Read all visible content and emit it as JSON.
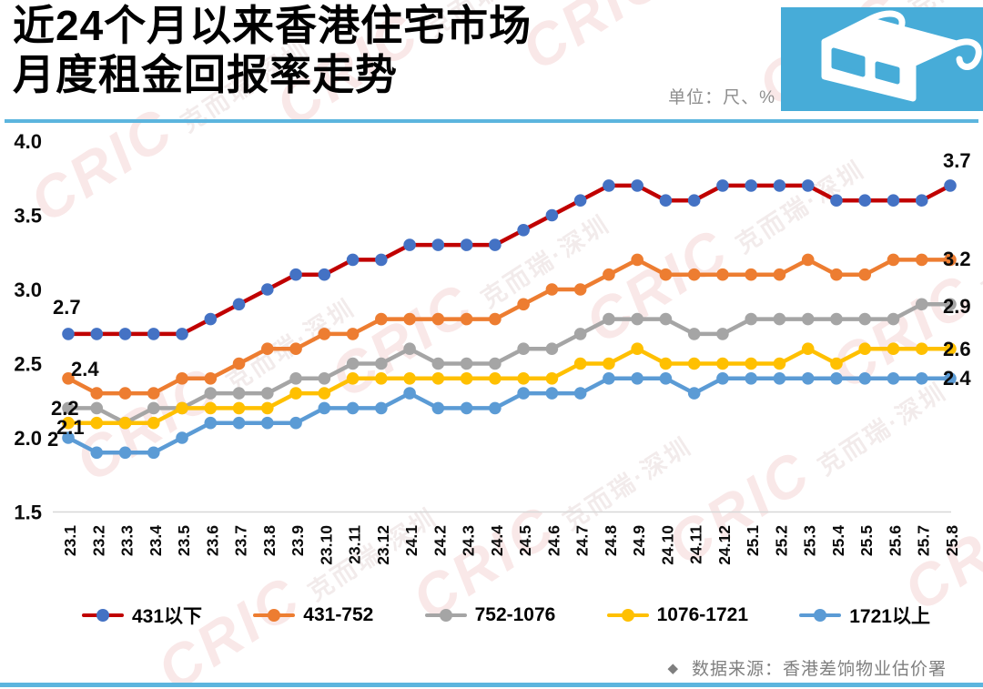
{
  "header": {
    "title_line1": "近24个月以来香港住宅市场",
    "title_line2": "月度租金回报率走势",
    "unit_label": "单位：尺、%"
  },
  "watermark": {
    "brand": "CRIC",
    "text": "克而瑞·深圳"
  },
  "footer": {
    "bullet": "◆",
    "source": "数据来源：香港差饷物业估价署"
  },
  "accent_colors": {
    "rule_blue": "#5CB5DE",
    "icon_bg": "#47ACD8",
    "axis_gray": "#D7D7D7"
  },
  "chart_data": {
    "type": "line",
    "title": "近24个月以来香港住宅市场月度租金回报率走势",
    "unit": "单位：尺、%",
    "ylim": [
      1.5,
      4.0
    ],
    "yticks": [
      "4.0",
      "3.5",
      "3.0",
      "2.5",
      "2.0",
      "1.5"
    ],
    "grid": false,
    "legend_position": "bottom",
    "categories": [
      "23.1",
      "23.2",
      "23.3",
      "23.4",
      "23.5",
      "23.6",
      "23.7",
      "23.8",
      "23.9",
      "23.10",
      "23.11",
      "23.12",
      "24.1",
      "24.2",
      "24.3",
      "24.4",
      "24.5",
      "24.6",
      "24.7",
      "24.8",
      "24.9",
      "24.10",
      "24.11",
      "24.12",
      "25.1",
      "25.2",
      "25.3",
      "25.4",
      "25.5",
      "25.6",
      "25.7",
      "25.8"
    ],
    "series": [
      {
        "name": "431以下",
        "color": "#C00000",
        "marker_color": "#4472C4",
        "start_label": "2.7",
        "end_label": "3.7",
        "values": [
          2.7,
          2.7,
          2.7,
          2.7,
          2.7,
          2.8,
          2.9,
          3.0,
          3.1,
          3.1,
          3.2,
          3.2,
          3.3,
          3.3,
          3.3,
          3.3,
          3.4,
          3.5,
          3.6,
          3.7,
          3.7,
          3.6,
          3.6,
          3.7,
          3.7,
          3.7,
          3.7,
          3.6,
          3.6,
          3.6,
          3.6,
          3.7
        ]
      },
      {
        "name": "431-752",
        "color": "#ED7D31",
        "marker_color": "#ED7D31",
        "start_label": "2.4",
        "end_label": "3.2",
        "values": [
          2.4,
          2.3,
          2.3,
          2.3,
          2.4,
          2.4,
          2.5,
          2.6,
          2.6,
          2.7,
          2.7,
          2.8,
          2.8,
          2.8,
          2.8,
          2.8,
          2.9,
          3.0,
          3.0,
          3.1,
          3.2,
          3.1,
          3.1,
          3.1,
          3.1,
          3.1,
          3.2,
          3.1,
          3.1,
          3.2,
          3.2,
          3.2
        ]
      },
      {
        "name": "752-1076",
        "color": "#A5A5A5",
        "marker_color": "#A5A5A5",
        "start_label": "2.2",
        "end_label": "2.9",
        "values": [
          2.2,
          2.2,
          2.1,
          2.2,
          2.2,
          2.3,
          2.3,
          2.3,
          2.4,
          2.4,
          2.5,
          2.5,
          2.6,
          2.5,
          2.5,
          2.5,
          2.6,
          2.6,
          2.7,
          2.8,
          2.8,
          2.8,
          2.7,
          2.7,
          2.8,
          2.8,
          2.8,
          2.8,
          2.8,
          2.8,
          2.9,
          2.9
        ]
      },
      {
        "name": "1076-1721",
        "color": "#FFC000",
        "marker_color": "#FFC000",
        "start_label": "2.1",
        "end_label": "2.6",
        "values": [
          2.1,
          2.1,
          2.1,
          2.1,
          2.2,
          2.2,
          2.2,
          2.2,
          2.3,
          2.3,
          2.4,
          2.4,
          2.4,
          2.4,
          2.4,
          2.4,
          2.4,
          2.4,
          2.5,
          2.5,
          2.6,
          2.5,
          2.5,
          2.5,
          2.5,
          2.5,
          2.6,
          2.5,
          2.6,
          2.6,
          2.6,
          2.6
        ]
      },
      {
        "name": "1721以上",
        "color": "#5B9BD5",
        "marker_color": "#5B9BD5",
        "start_label": "2",
        "end_label": "2.4",
        "values": [
          2.0,
          1.9,
          1.9,
          1.9,
          2.0,
          2.1,
          2.1,
          2.1,
          2.1,
          2.2,
          2.2,
          2.2,
          2.3,
          2.2,
          2.2,
          2.2,
          2.3,
          2.3,
          2.3,
          2.4,
          2.4,
          2.4,
          2.3,
          2.4,
          2.4,
          2.4,
          2.4,
          2.4,
          2.4,
          2.4,
          2.4,
          2.4
        ]
      }
    ]
  }
}
